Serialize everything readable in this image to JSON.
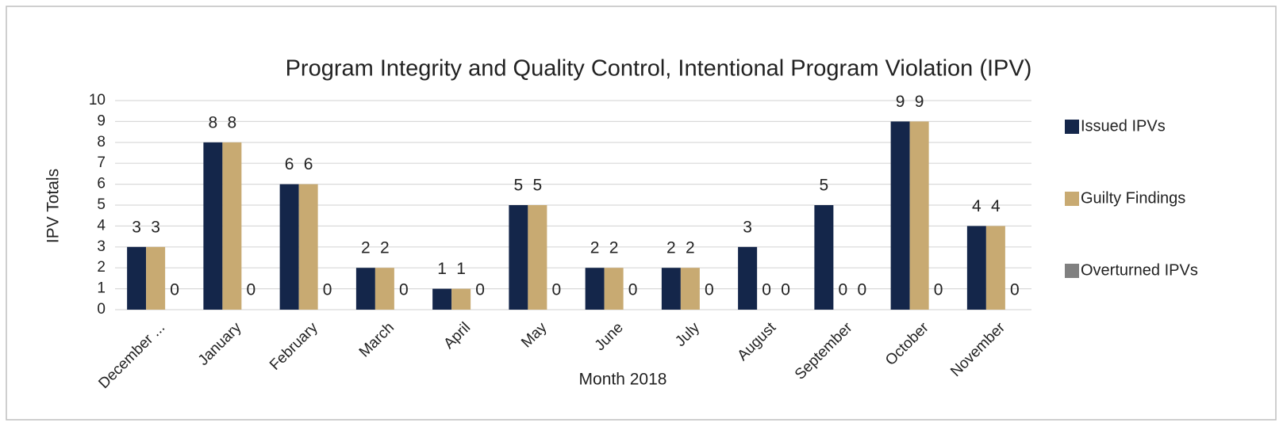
{
  "chart_data": {
    "type": "bar",
    "title": "Program Integrity and Quality Control, Intentional Program Violation (IPV)",
    "x_label": "Month 2018",
    "y_label": "IPV Totals",
    "categories": [
      "December ...",
      "January",
      "February",
      "March",
      "April",
      "May",
      "June",
      "July",
      "August",
      "September",
      "October",
      "November"
    ],
    "series": [
      {
        "name": "Issued IPVs",
        "color": "#14264a",
        "values": [
          3,
          8,
          6,
          2,
          1,
          5,
          2,
          2,
          3,
          5,
          9,
          4
        ]
      },
      {
        "name": "Guilty Findings",
        "color": "#c8aa72",
        "values": [
          3,
          8,
          6,
          2,
          1,
          5,
          2,
          2,
          0,
          0,
          9,
          4
        ]
      },
      {
        "name": "Overturned IPVs",
        "color": "#808080",
        "values": [
          0,
          0,
          0,
          0,
          0,
          0,
          0,
          0,
          0,
          0,
          0,
          0
        ]
      }
    ],
    "ylim": [
      0,
      10
    ],
    "yticks": [
      0,
      1,
      2,
      3,
      4,
      5,
      6,
      7,
      8,
      9,
      10
    ],
    "grid": true,
    "legend": "right"
  }
}
